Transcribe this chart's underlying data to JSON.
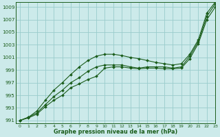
{
  "title": "Graphe pression niveau de la mer (hPa)",
  "bg_color": "#cceaea",
  "grid_color": "#99cccc",
  "line_color": "#1a5c1a",
  "marker_color": "#1a5c1a",
  "xlim": [
    -0.5,
    23
  ],
  "ylim": [
    990.5,
    1009.8
  ],
  "yticks": [
    991,
    993,
    995,
    997,
    999,
    1001,
    1003,
    1005,
    1007,
    1009
  ],
  "xticks": [
    0,
    1,
    2,
    3,
    4,
    5,
    6,
    7,
    8,
    9,
    10,
    11,
    12,
    13,
    14,
    15,
    16,
    17,
    18,
    19,
    20,
    21,
    22,
    23
  ],
  "series": [
    [
      991.0,
      991.4,
      992.0,
      993.2,
      994.2,
      995.0,
      996.2,
      996.8,
      997.5,
      998.0,
      999.3,
      999.5,
      999.5,
      999.3,
      999.2,
      999.3,
      999.3,
      999.2,
      999.2,
      999.3,
      1000.8,
      1003.2,
      1007.0,
      1009.0
    ],
    [
      991.0,
      991.5,
      992.2,
      993.5,
      994.8,
      995.8,
      997.0,
      997.8,
      998.8,
      999.5,
      999.8,
      999.8,
      999.8,
      999.5,
      999.3,
      999.5,
      999.5,
      999.5,
      999.3,
      999.5,
      1001.2,
      1003.5,
      1007.5,
      1009.5
    ],
    [
      991.0,
      991.5,
      992.5,
      994.2,
      995.8,
      997.0,
      998.3,
      999.5,
      1000.5,
      1001.2,
      1001.5,
      1001.5,
      1001.3,
      1001.0,
      1000.8,
      1000.5,
      1000.2,
      1000.0,
      999.8,
      1000.0,
      1001.5,
      1003.8,
      1008.0,
      1009.8
    ]
  ]
}
